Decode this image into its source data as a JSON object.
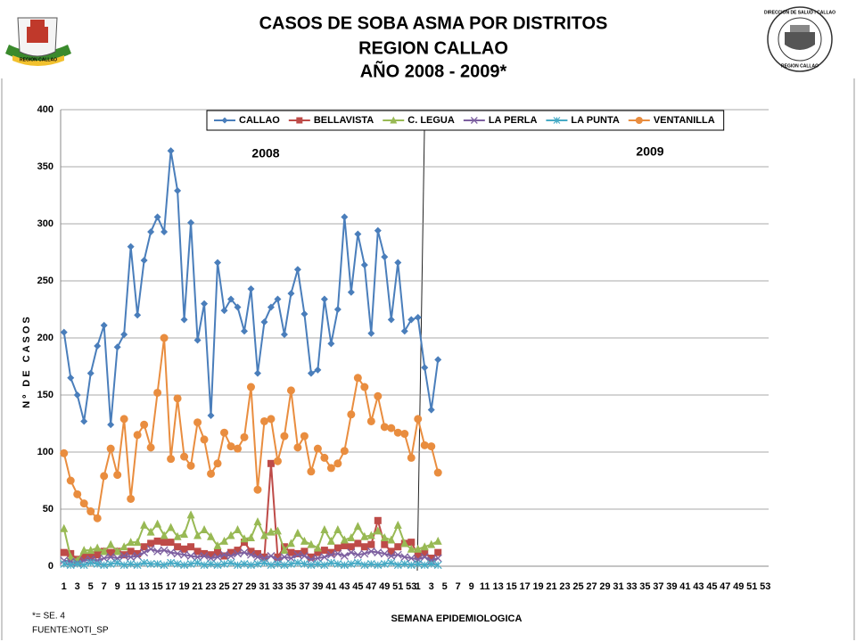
{
  "logos": {
    "left": "REGION CALLAO",
    "right_top": "DIRECCION DE SALUD I CALLAO",
    "right_bottom": "REGION CALLAO"
  },
  "chart_data": {
    "type": "line",
    "title": [
      "CASOS DE SOBA ASMA POR DISTRITOS",
      "REGION CALLAO",
      "AÑO 2008 - 2009*"
    ],
    "ylabel": "Nº DE CASOS",
    "xlabel": "SEMANA EPIDEMIOLOGICA",
    "annotations": [
      "2008",
      "2009"
    ],
    "footnotes": [
      "*= SE.  4",
      "FUENTE:NOTI_SP"
    ],
    "legend": "top",
    "grid": true,
    "ylim": [
      0,
      400
    ],
    "yticks": [
      0,
      50,
      100,
      150,
      200,
      250,
      300,
      350,
      400
    ],
    "categories": [
      "1",
      null,
      "3",
      null,
      "5",
      null,
      "7",
      null,
      "9",
      null,
      "11",
      null,
      "13",
      null,
      "15",
      null,
      "17",
      null,
      "19",
      null,
      "21",
      null,
      "23",
      null,
      "25",
      null,
      "27",
      null,
      "29",
      null,
      "31",
      null,
      "33",
      null,
      "35",
      null,
      "37",
      null,
      "39",
      null,
      "41",
      null,
      "43",
      null,
      "45",
      null,
      "47",
      null,
      "49",
      null,
      "51",
      null,
      "53",
      "1",
      null,
      "3",
      null,
      "5",
      null,
      "7",
      null,
      "9",
      null,
      "11",
      null,
      "13",
      null,
      "15",
      null,
      "17",
      null,
      "19",
      null,
      "21",
      null,
      "23",
      null,
      "25",
      null,
      "27",
      null,
      "29",
      null,
      "31",
      null,
      "33",
      null,
      "35",
      null,
      "37",
      null,
      "39",
      null,
      "41",
      null,
      "43",
      null,
      "45",
      null,
      "47",
      null,
      "49",
      null,
      "51",
      null,
      "53"
    ],
    "series": [
      {
        "name": "CALLAO",
        "color": "#4a7ebb",
        "marker": "diamond",
        "values": [
          205,
          165,
          150,
          127,
          169,
          193,
          211,
          124,
          192,
          203,
          280,
          220,
          268,
          293,
          306,
          293,
          364,
          329,
          216,
          301,
          198,
          230,
          132,
          266,
          224,
          234,
          227,
          206,
          243,
          169,
          214,
          227,
          234,
          203,
          239,
          260,
          221,
          169,
          172,
          234,
          195,
          225,
          306,
          240,
          291,
          264,
          204,
          294,
          271,
          216,
          266,
          206,
          216,
          218,
          174,
          137,
          181,
          null,
          null,
          null,
          null,
          null,
          null,
          null,
          null,
          null,
          null,
          null,
          null,
          null,
          null,
          null,
          null,
          null,
          null,
          null,
          null,
          null,
          null,
          null,
          null,
          null,
          null,
          null,
          null,
          null,
          null,
          null,
          null,
          null,
          null,
          null,
          null,
          null,
          null,
          null,
          null,
          null,
          null,
          null,
          null,
          null,
          null,
          null,
          null,
          null
        ]
      },
      {
        "name": "BELLAVISTA",
        "color": "#be4b48",
        "marker": "square",
        "values": [
          12,
          11,
          6,
          8,
          9,
          10,
          13,
          12,
          13,
          10,
          13,
          11,
          17,
          20,
          22,
          21,
          21,
          17,
          15,
          17,
          13,
          11,
          10,
          12,
          9,
          12,
          14,
          21,
          13,
          11,
          8,
          90,
          8,
          17,
          12,
          11,
          13,
          8,
          12,
          14,
          12,
          16,
          18,
          17,
          20,
          17,
          19,
          40,
          19,
          13,
          17,
          20,
          21,
          10,
          12,
          7,
          12,
          null,
          null,
          null,
          null,
          null,
          null,
          null,
          null,
          null,
          null,
          null,
          null,
          null,
          null,
          null,
          null,
          null,
          null,
          null,
          null,
          null,
          null,
          null,
          null,
          null,
          null,
          null,
          null,
          null,
          null,
          null,
          null,
          null,
          null,
          null,
          null,
          null,
          null,
          null,
          null,
          null,
          null,
          null,
          null,
          null,
          null,
          null,
          null,
          null
        ]
      },
      {
        "name": "C. LEGUA",
        "color": "#98b954",
        "marker": "triangle",
        "values": [
          33,
          8,
          5,
          14,
          14,
          16,
          13,
          19,
          13,
          17,
          21,
          21,
          36,
          30,
          37,
          27,
          34,
          26,
          28,
          45,
          27,
          32,
          26,
          18,
          22,
          27,
          32,
          24,
          25,
          39,
          27,
          30,
          31,
          14,
          20,
          29,
          22,
          19,
          16,
          32,
          22,
          32,
          23,
          25,
          35,
          26,
          27,
          31,
          25,
          23,
          36,
          20,
          15,
          15,
          17,
          19,
          22,
          null,
          null,
          null,
          null,
          null,
          null,
          null,
          null,
          null,
          null,
          null,
          null,
          null,
          null,
          null,
          null,
          null,
          null,
          null,
          null,
          null,
          null,
          null,
          null,
          null,
          null,
          null,
          null,
          null,
          null,
          null,
          null,
          null,
          null,
          null,
          null,
          null,
          null,
          null,
          null,
          null,
          null,
          null,
          null,
          null,
          null,
          null,
          null,
          null
        ]
      },
      {
        "name": "LA PERLA",
        "color": "#7d60a0",
        "marker": "x",
        "values": [
          5,
          4,
          3,
          5,
          6,
          5,
          7,
          8,
          7,
          9,
          8,
          9,
          12,
          15,
          13,
          14,
          12,
          11,
          10,
          9,
          8,
          9,
          7,
          8,
          10,
          9,
          11,
          12,
          10,
          8,
          7,
          9,
          6,
          8,
          7,
          10,
          9,
          6,
          7,
          8,
          10,
          11,
          9,
          12,
          10,
          11,
          13,
          12,
          11,
          9,
          10,
          8,
          7,
          6,
          8,
          5,
          7,
          null,
          null,
          null,
          null,
          null,
          null,
          null,
          null,
          null,
          null,
          null,
          null,
          null,
          null,
          null,
          null,
          null,
          null,
          null,
          null,
          null,
          null,
          null,
          null,
          null,
          null,
          null,
          null,
          null,
          null,
          null,
          null,
          null,
          null,
          null,
          null,
          null,
          null,
          null,
          null,
          null,
          null,
          null,
          null,
          null,
          null,
          null,
          null,
          null
        ]
      },
      {
        "name": "LA PUNTA",
        "color": "#46aac5",
        "marker": "star",
        "values": [
          2,
          1,
          2,
          1,
          3,
          2,
          1,
          2,
          3,
          1,
          2,
          1,
          3,
          2,
          2,
          1,
          3,
          2,
          1,
          2,
          3,
          1,
          2,
          1,
          2,
          3,
          1,
          2,
          1,
          2,
          3,
          1,
          2,
          1,
          2,
          3,
          2,
          1,
          2,
          1,
          3,
          2,
          1,
          2,
          3,
          1,
          2,
          1,
          2,
          3,
          1,
          2,
          1,
          2,
          1,
          2,
          1,
          null,
          null,
          null,
          null,
          null,
          null,
          null,
          null,
          null,
          null,
          null,
          null,
          null,
          null,
          null,
          null,
          null,
          null,
          null,
          null,
          null,
          null,
          null,
          null,
          null,
          null,
          null,
          null,
          null,
          null,
          null,
          null,
          null,
          null,
          null,
          null,
          null,
          null,
          null,
          null,
          null,
          null,
          null,
          null,
          null,
          null,
          null,
          null,
          null
        ]
      },
      {
        "name": "VENTANILLA",
        "color": "#e98d3f",
        "marker": "circle",
        "values": [
          99,
          75,
          63,
          55,
          48,
          42,
          79,
          103,
          80,
          129,
          59,
          115,
          124,
          104,
          152,
          200,
          94,
          147,
          96,
          88,
          126,
          111,
          81,
          90,
          117,
          105,
          103,
          113,
          157,
          67,
          127,
          129,
          92,
          114,
          154,
          104,
          114,
          83,
          103,
          95,
          86,
          90,
          101,
          133,
          165,
          157,
          127,
          149,
          122,
          121,
          117,
          116,
          95,
          129,
          106,
          105,
          82,
          null,
          null,
          null,
          null,
          null,
          null,
          null,
          null,
          null,
          null,
          null,
          null,
          null,
          null,
          null,
          null,
          null,
          null,
          null,
          null,
          null,
          null,
          null,
          null,
          null,
          null,
          null,
          null,
          null,
          null,
          null,
          null,
          null,
          null,
          null,
          null,
          null,
          null,
          null,
          null,
          null,
          null,
          null,
          null,
          null,
          null,
          null,
          null,
          null
        ]
      }
    ]
  }
}
